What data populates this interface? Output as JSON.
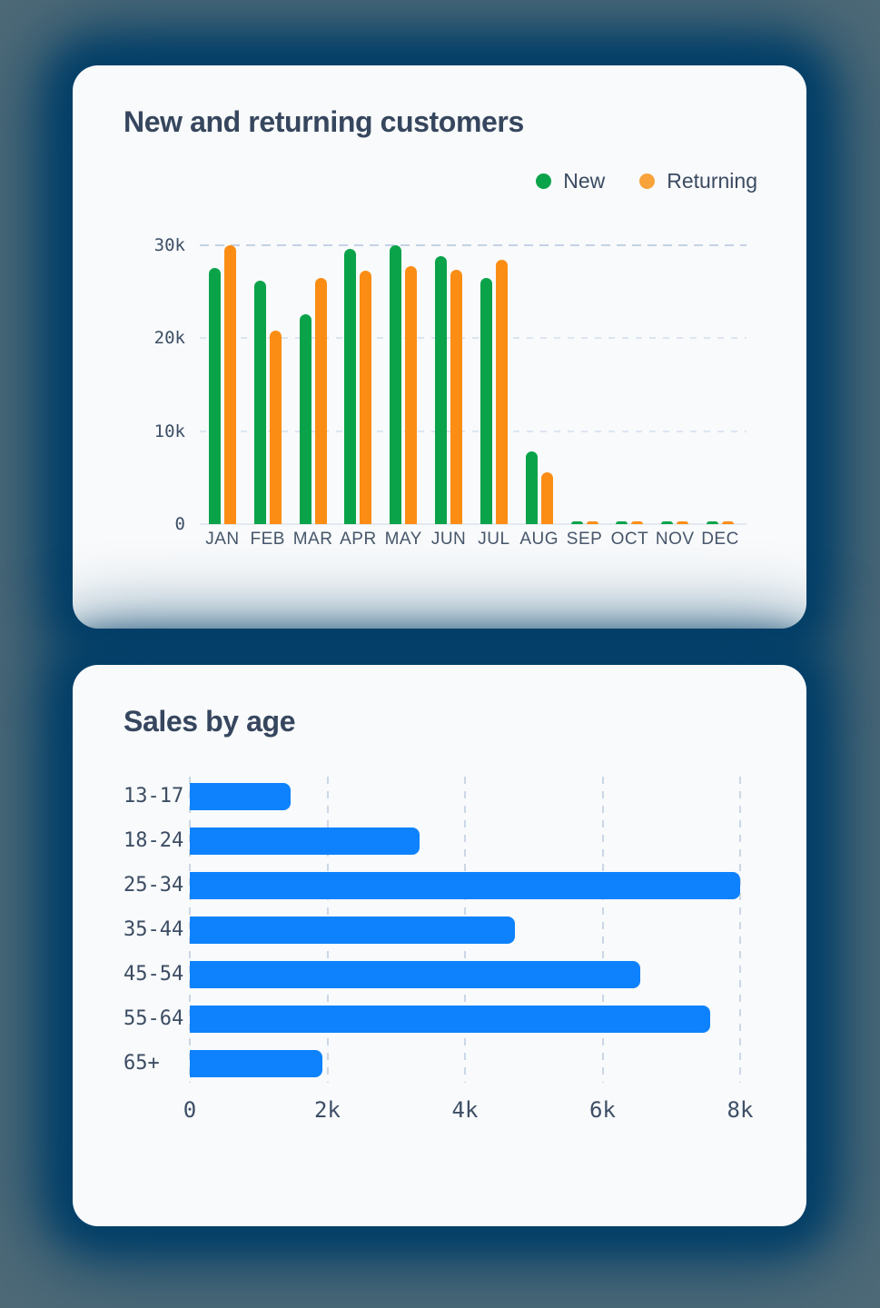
{
  "colors": {
    "background_outer": "#4e6a77",
    "background_glow": "#033f68",
    "card_background": "#f8fafb",
    "title_text": "#36465e",
    "axis_text": "#3d4e66",
    "month_text": "#47566b",
    "grid_strong": "#c5d1e7",
    "grid_light": "#dde5f1",
    "baseline": "#e4e9ef",
    "new_green": "#0aa34a",
    "returning_orange": "#fb8d15",
    "legend_returning_dot": "#f9a33c",
    "sales_blue": "#0e82fc"
  },
  "chart_data": [
    {
      "type": "bar",
      "title": "New and returning customers",
      "categories": [
        "JAN",
        "FEB",
        "MAR",
        "APR",
        "MAY",
        "JUN",
        "JUL",
        "AUG",
        "SEP",
        "OCT",
        "NOV",
        "DEC"
      ],
      "series": [
        {
          "name": "New",
          "color": "#0aa34a",
          "legend_dot_color": "#0aa34a",
          "values": [
            27600,
            26200,
            22600,
            29600,
            30000,
            28800,
            26500,
            7800,
            300,
            300,
            300,
            300
          ]
        },
        {
          "name": "Returning",
          "color": "#fb8d15",
          "legend_dot_color": "#f9a33c",
          "values": [
            30000,
            20800,
            26500,
            27300,
            27800,
            27400,
            28400,
            5600,
            300,
            300,
            300,
            300
          ]
        }
      ],
      "ylim": [
        0,
        30000
      ],
      "y_ticks": [
        {
          "label": "30k",
          "value": 30000
        },
        {
          "label": "20k",
          "value": 20000
        },
        {
          "label": "10k",
          "value": 10000
        },
        {
          "label": "0",
          "value": 0
        }
      ],
      "legend_position": "top-right",
      "grid": "horizontal-dashed"
    },
    {
      "type": "bar-horizontal",
      "title": "Sales by age",
      "categories": [
        "13-17",
        "18-24",
        "25-34",
        "35-44",
        "45-54",
        "55-64",
        "65+"
      ],
      "values": [
        1470,
        3340,
        8000,
        4720,
        6550,
        7560,
        1930
      ],
      "xlim": [
        0,
        8000
      ],
      "x_ticks": [
        {
          "label": "0",
          "value": 0
        },
        {
          "label": "2k",
          "value": 2000
        },
        {
          "label": "4k",
          "value": 4000
        },
        {
          "label": "6k",
          "value": 6000
        },
        {
          "label": "8k",
          "value": 8000
        }
      ],
      "bar_color": "#0e82fc",
      "grid": "vertical-dashed",
      "legend_position": "none"
    }
  ]
}
